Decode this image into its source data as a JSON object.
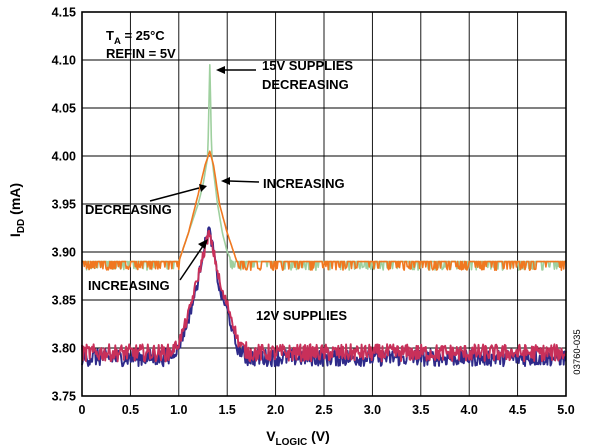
{
  "chart_data": {
    "type": "line",
    "xlabel": "V",
    "xlabel_sub": "LOGIC",
    "xlabel_unit": " (V)",
    "ylabel": "I",
    "ylabel_sub": "DD",
    "ylabel_unit": " (mA)",
    "xlim": [
      0,
      5.0
    ],
    "ylim": [
      3.75,
      4.15
    ],
    "x_ticks": [
      "0",
      "0.5",
      "1.0",
      "1.5",
      "2.0",
      "2.5",
      "3.0",
      "3.5",
      "4.0",
      "4.5",
      "5.0"
    ],
    "y_ticks": [
      "3.75",
      "3.80",
      "3.85",
      "3.90",
      "3.95",
      "4.00",
      "4.05",
      "4.10",
      "4.15"
    ],
    "grid": true,
    "conditions": {
      "ta_main": "T",
      "ta_sub": "A",
      "ta_rest": " = 25°C",
      "refin": "REFIN = 5V"
    },
    "annotations": {
      "supplies15_line1": "15V SUPPLIES",
      "supplies15_line2": "DECREASING",
      "increasing_upper": "INCREASING",
      "decreasing_upper": "DECREASING",
      "increasing_lower": "INCREASING",
      "supplies12": "12V SUPPLIES"
    },
    "figure_code": "03760-035",
    "series": [
      {
        "color": "#9fd09f",
        "baseline": 3.89,
        "points": [
          [
            0,
            3.89
          ],
          [
            1.0,
            3.89
          ],
          [
            1.1,
            3.92
          ],
          [
            1.2,
            3.95
          ],
          [
            1.25,
            3.97
          ],
          [
            1.3,
            4.0
          ],
          [
            1.32,
            4.095
          ],
          [
            1.34,
            4.0
          ],
          [
            1.4,
            3.95
          ],
          [
            1.45,
            3.92
          ],
          [
            1.5,
            3.9
          ],
          [
            1.55,
            3.89
          ],
          [
            5.0,
            3.89
          ]
        ]
      },
      {
        "color": "#f07820",
        "baseline": 3.89,
        "points": [
          [
            0,
            3.89
          ],
          [
            1.0,
            3.89
          ],
          [
            1.1,
            3.92
          ],
          [
            1.2,
            3.96
          ],
          [
            1.27,
            3.99
          ],
          [
            1.32,
            4.005
          ],
          [
            1.36,
            3.99
          ],
          [
            1.42,
            3.95
          ],
          [
            1.5,
            3.92
          ],
          [
            1.6,
            3.89
          ],
          [
            5.0,
            3.89
          ]
        ]
      },
      {
        "color": "#2e2a8a",
        "baseline": 3.79,
        "points": [
          [
            0,
            3.79
          ],
          [
            0.9,
            3.79
          ],
          [
            1.0,
            3.8
          ],
          [
            1.1,
            3.83
          ],
          [
            1.2,
            3.87
          ],
          [
            1.25,
            3.9
          ],
          [
            1.31,
            3.925
          ],
          [
            1.36,
            3.9
          ],
          [
            1.42,
            3.86
          ],
          [
            1.5,
            3.84
          ],
          [
            1.6,
            3.8
          ],
          [
            1.7,
            3.79
          ],
          [
            5.0,
            3.79
          ]
        ]
      },
      {
        "color": "#c8305a",
        "baseline": 3.795,
        "points": [
          [
            0,
            3.795
          ],
          [
            0.9,
            3.795
          ],
          [
            1.0,
            3.805
          ],
          [
            1.1,
            3.835
          ],
          [
            1.2,
            3.875
          ],
          [
            1.26,
            3.9
          ],
          [
            1.31,
            3.92
          ],
          [
            1.37,
            3.895
          ],
          [
            1.44,
            3.86
          ],
          [
            1.52,
            3.84
          ],
          [
            1.62,
            3.805
          ],
          [
            1.72,
            3.795
          ],
          [
            5.0,
            3.795
          ]
        ]
      }
    ]
  }
}
